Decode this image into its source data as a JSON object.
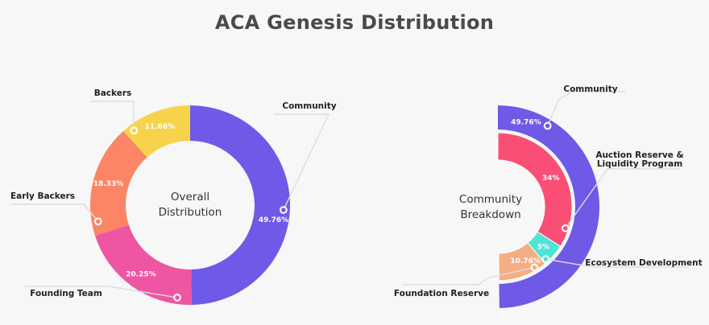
{
  "title": "ACA Genesis Distribution",
  "chart_data": [
    {
      "type": "pie",
      "center_label": [
        "Overall",
        "Distribution"
      ],
      "slices": [
        {
          "name": "Community",
          "value": 49.76,
          "label": "49.76%",
          "color": "#6e5ae6"
        },
        {
          "name": "Founding Team",
          "value": 20.25,
          "label": "20.25%",
          "color": "#ee55a2"
        },
        {
          "name": "Early Backers",
          "value": 18.33,
          "label": "18.33%",
          "color": "#fb8565"
        },
        {
          "name": "Backers",
          "value": 11.66,
          "label": "11.66%",
          "color": "#f7d34c"
        }
      ]
    },
    {
      "type": "pie",
      "center_label": [
        "Community",
        "Breakdown"
      ],
      "parent": {
        "name": "Community",
        "value": 49.76,
        "label": "49.76%",
        "color": "#6e5ae6"
      },
      "slices": [
        {
          "name": "Auction Reserve & Liquidity Program",
          "name_lines": [
            "Auction Reserve &",
            "Liquidity Program"
          ],
          "value": 34,
          "label": "34%",
          "color": "#f94f75"
        },
        {
          "name": "Ecosystem Development",
          "value": 5,
          "label": "5%",
          "color": "#4ee4d6"
        },
        {
          "name": "Foundation Reserve",
          "value": 10.76,
          "label": "10.76%",
          "color": "#f6ad84"
        }
      ]
    }
  ]
}
